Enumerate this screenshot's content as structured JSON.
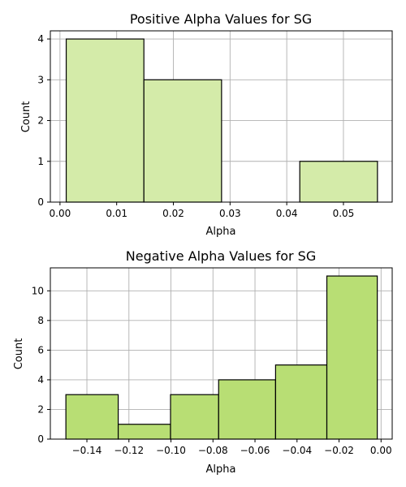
{
  "chart_data": [
    {
      "type": "bar",
      "title": "Positive Alpha Values for SG",
      "xlabel": "Alpha",
      "ylabel": "Count",
      "xlim": [
        -0.0017,
        0.0586
      ],
      "ylim": [
        0,
        4.2
      ],
      "xticks": [
        0.0,
        0.01,
        0.02,
        0.03,
        0.04,
        0.05
      ],
      "xtick_labels": [
        "0.00",
        "0.01",
        "0.02",
        "0.03",
        "0.04",
        "0.05"
      ],
      "yticks": [
        0,
        1,
        2,
        3,
        4
      ],
      "ytick_labels": [
        "0",
        "1",
        "2",
        "3",
        "4"
      ],
      "bin_edges": [
        0.0011,
        0.0148,
        0.0285,
        0.0423,
        0.056
      ],
      "values": [
        4,
        3,
        0,
        1
      ],
      "color": "#d4eba9",
      "grid": true
    },
    {
      "type": "bar",
      "title": "Negative Alpha Values for SG",
      "xlabel": "Alpha",
      "ylabel": "Count",
      "xlim": [
        -0.1574,
        0.0053
      ],
      "ylim": [
        0,
        11.55
      ],
      "xticks": [
        -0.14,
        -0.12,
        -0.1,
        -0.08,
        -0.06,
        -0.04,
        -0.02,
        0.0
      ],
      "xtick_labels": [
        "−0.14",
        "−0.12",
        "−0.10",
        "−0.08",
        "−0.06",
        "−0.04",
        "−0.02",
        "0.00"
      ],
      "yticks": [
        0,
        2,
        4,
        6,
        8,
        10
      ],
      "ytick_labels": [
        "0",
        "2",
        "4",
        "6",
        "8",
        "10"
      ],
      "bin_edges": [
        -0.15,
        -0.1251,
        -0.1002,
        -0.0773,
        -0.0502,
        -0.0258,
        -0.0018
      ],
      "values": [
        3,
        1,
        3,
        4,
        5,
        11
      ],
      "color": "#b8de74",
      "grid": true
    }
  ]
}
